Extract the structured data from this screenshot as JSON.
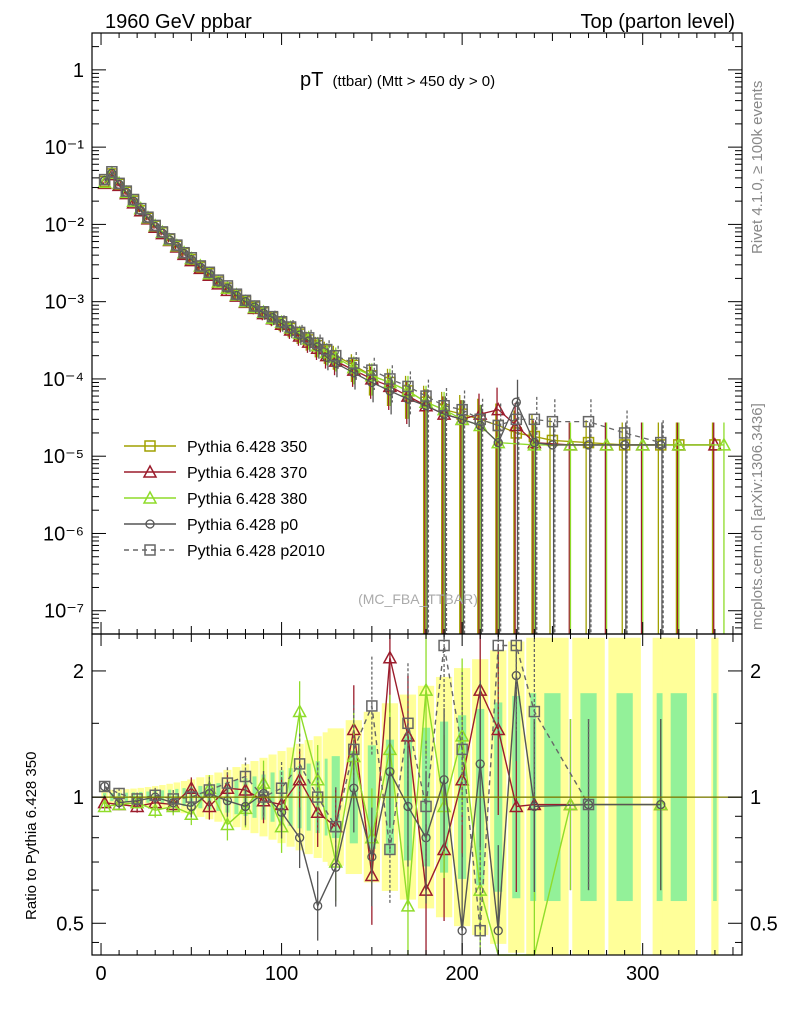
{
  "header": {
    "left": "1960 GeV ppbar",
    "right": "Top (parton level)"
  },
  "side_labels": {
    "rivet": "Rivet 4.1.0, ≥ 100k events",
    "mcplots": "mcplots.cern.ch [arXiv:1306.3436]"
  },
  "colors": {
    "p350": "#a0a000",
    "p370": "#9b1c2c",
    "p380": "#8fdc2a",
    "p0": "#555555",
    "p2010": "#666666",
    "band_yellow": "#ffff99",
    "band_green": "#80ee99"
  },
  "chart_data": [
    {
      "type": "line",
      "panel": "main",
      "title": "pT",
      "title_sub": "(ttbar) (Mtt > 450 dy > 0)",
      "watermark": "(MC_FBA_TTBAR)",
      "xlabel": "",
      "ylabel": "",
      "xlim": [
        -5,
        355
      ],
      "ylog": true,
      "ylim": [
        5e-08,
        3
      ],
      "x_ticks": [
        0,
        100,
        200,
        300
      ],
      "y_ticks": [
        {
          "value": 1,
          "label": "1"
        },
        {
          "value": 0.1,
          "label": "10⁻¹"
        },
        {
          "value": 0.01,
          "label": "10⁻²"
        },
        {
          "value": 0.001,
          "label": "10⁻³"
        },
        {
          "value": 0.0001,
          "label": "10⁻⁴"
        },
        {
          "value": 1e-05,
          "label": "10⁻⁵"
        },
        {
          "value": 1e-06,
          "label": "10⁻⁶"
        },
        {
          "value": 1e-07,
          "label": "10⁻⁷"
        }
      ],
      "legend_position": "lower-left",
      "series": [
        {
          "key": "p350",
          "name": "Pythia 6.428 350",
          "marker": "square-open",
          "dash": false,
          "x": [
            2,
            6,
            10,
            14,
            18,
            22,
            26,
            30,
            34,
            38,
            42,
            46,
            50,
            55,
            60,
            65,
            70,
            75,
            80,
            85,
            90,
            95,
            100,
            105,
            110,
            115,
            120,
            125,
            130,
            140,
            150,
            160,
            170,
            180,
            190,
            200,
            210,
            220,
            230,
            240,
            250,
            270,
            290,
            310,
            320,
            340
          ],
          "y": [
            0.036,
            0.045,
            0.033,
            0.026,
            0.02,
            0.015,
            0.012,
            0.0095,
            0.0078,
            0.0064,
            0.0052,
            0.0042,
            0.0035,
            0.0028,
            0.0023,
            0.0018,
            0.0015,
            0.0012,
            0.001,
            0.00085,
            0.00072,
            0.00062,
            0.00053,
            0.00045,
            0.00038,
            0.00032,
            0.00027,
            0.00023,
            0.0002,
            0.00015,
            0.00011,
            9e-05,
            7e-05,
            5e-05,
            4e-05,
            3.5e-05,
            3e-05,
            2.5e-05,
            2e-05,
            1.8e-05,
            1.6e-05,
            1.5e-05,
            1.4e-05,
            1.4e-05,
            1.4e-05,
            1.4e-05
          ]
        },
        {
          "key": "p370",
          "name": "Pythia 6.428 370",
          "marker": "triangle-open",
          "dash": false,
          "x": [
            2,
            6,
            10,
            14,
            18,
            22,
            26,
            30,
            34,
            38,
            42,
            46,
            50,
            55,
            60,
            65,
            70,
            75,
            80,
            85,
            90,
            95,
            100,
            105,
            110,
            115,
            120,
            125,
            130,
            140,
            150,
            160,
            170,
            180,
            190,
            200,
            210,
            220,
            230,
            240,
            260,
            280,
            300,
            320,
            340
          ],
          "y": [
            0.034,
            0.044,
            0.032,
            0.025,
            0.019,
            0.015,
            0.0118,
            0.0092,
            0.0076,
            0.0062,
            0.0051,
            0.0041,
            0.0034,
            0.0027,
            0.0022,
            0.0017,
            0.0014,
            0.00118,
            0.00098,
            0.00082,
            0.0007,
            0.0006,
            0.00051,
            0.00043,
            0.00036,
            0.0003,
            0.00025,
            0.0002,
            0.00017,
            0.00013,
            0.0001,
            8e-05,
            6e-05,
            4.5e-05,
            3.5e-05,
            3e-05,
            3.5e-05,
            4e-05,
            2.5e-05,
            1.5e-05,
            1.4e-05,
            1.4e-05,
            1.4e-05,
            1.4e-05,
            1.4e-05
          ]
        },
        {
          "key": "p380",
          "name": "Pythia 6.428 380",
          "marker": "triangle-open",
          "dash": false,
          "x": [
            2,
            6,
            10,
            14,
            18,
            22,
            26,
            30,
            34,
            38,
            42,
            46,
            50,
            55,
            60,
            65,
            70,
            75,
            80,
            85,
            90,
            95,
            100,
            105,
            110,
            115,
            120,
            125,
            130,
            140,
            150,
            160,
            170,
            180,
            190,
            200,
            210,
            220,
            240,
            260,
            280,
            300,
            320,
            345
          ],
          "y": [
            0.035,
            0.046,
            0.034,
            0.026,
            0.02,
            0.016,
            0.0122,
            0.0096,
            0.0079,
            0.0063,
            0.0053,
            0.0043,
            0.0036,
            0.0029,
            0.0023,
            0.0018,
            0.0015,
            0.00122,
            0.001,
            0.00084,
            0.00073,
            0.00061,
            0.00054,
            0.00046,
            0.00039,
            0.00033,
            0.00027,
            0.00022,
            0.00019,
            0.00014,
            0.00011,
            9e-05,
            7e-05,
            5e-05,
            4e-05,
            3e-05,
            2.5e-05,
            1.5e-05,
            1.4e-05,
            1.4e-05,
            1.4e-05,
            1.4e-05,
            1.4e-05,
            1.4e-05
          ]
        },
        {
          "key": "p0",
          "name": "Pythia 6.428 p0",
          "marker": "circle-open",
          "dash": false,
          "x": [
            2,
            6,
            10,
            14,
            18,
            22,
            26,
            30,
            34,
            38,
            42,
            46,
            50,
            55,
            60,
            65,
            70,
            75,
            80,
            85,
            90,
            95,
            100,
            105,
            110,
            115,
            120,
            125,
            130,
            140,
            150,
            160,
            170,
            180,
            190,
            200,
            210,
            220,
            230,
            240,
            250,
            270,
            290,
            310
          ],
          "y": [
            0.037,
            0.046,
            0.033,
            0.026,
            0.02,
            0.015,
            0.0121,
            0.0094,
            0.0077,
            0.0063,
            0.0052,
            0.0042,
            0.0035,
            0.0028,
            0.0023,
            0.0018,
            0.0015,
            0.0012,
            0.001,
            0.00085,
            0.00071,
            0.00062,
            0.00052,
            0.00044,
            0.00037,
            0.00031,
            0.00026,
            0.00019,
            0.00016,
            0.00012,
            9e-05,
            7e-05,
            5.5e-05,
            4.5e-05,
            3.5e-05,
            3e-05,
            2.5e-05,
            1.5e-05,
            5e-05,
            1.5e-05,
            1.4e-05,
            1.4e-05,
            1.4e-05,
            1.4e-05
          ]
        },
        {
          "key": "p2010",
          "name": "Pythia 6.428 p2010",
          "marker": "square-open",
          "dash": true,
          "x": [
            2,
            6,
            10,
            14,
            18,
            22,
            26,
            30,
            34,
            38,
            42,
            46,
            50,
            55,
            60,
            65,
            70,
            75,
            80,
            85,
            90,
            95,
            100,
            105,
            110,
            115,
            120,
            125,
            130,
            140,
            150,
            160,
            170,
            180,
            190,
            200,
            210,
            220,
            230,
            240,
            250,
            270,
            290,
            310
          ],
          "y": [
            0.038,
            0.048,
            0.034,
            0.027,
            0.021,
            0.016,
            0.0124,
            0.0097,
            0.008,
            0.0065,
            0.0054,
            0.0043,
            0.0037,
            0.0029,
            0.0024,
            0.0019,
            0.0016,
            0.00125,
            0.00104,
            0.00088,
            0.00074,
            0.00064,
            0.00055,
            0.00047,
            0.0004,
            0.00034,
            0.00029,
            0.00024,
            0.0002,
            0.00016,
            0.00013,
            0.0001,
            8e-05,
            6e-05,
            4.5e-05,
            4e-05,
            3e-05,
            2.5e-05,
            3e-05,
            3e-05,
            2.8e-05,
            2.8e-05,
            2e-05,
            1.5e-05
          ]
        }
      ]
    },
    {
      "type": "line",
      "panel": "ratio",
      "xlabel": "",
      "ylabel": "Ratio to Pythia 6.428 350",
      "xlim": [
        -5,
        355
      ],
      "ylog": true,
      "ylim": [
        0.42,
        2.45
      ],
      "x_ticks": [
        0,
        100,
        200,
        300
      ],
      "y_ticks": [
        {
          "value": 0.5,
          "label": "0.5"
        },
        {
          "value": 1,
          "label": "1"
        },
        {
          "value": 2,
          "label": "2"
        }
      ],
      "reference": 1,
      "series": [
        {
          "key": "p370",
          "x": [
            2,
            10,
            20,
            30,
            40,
            50,
            60,
            70,
            80,
            90,
            100,
            110,
            120,
            130,
            140,
            150,
            160,
            170,
            180,
            190,
            200,
            210,
            220,
            230,
            240,
            260,
            310
          ],
          "y": [
            0.97,
            0.96,
            0.95,
            0.97,
            0.96,
            1.05,
            0.95,
            1.05,
            1.04,
            0.98,
            0.96,
            1.1,
            0.92,
            0.85,
            1.45,
            0.65,
            2.15,
            1.4,
            0.6,
            0.75,
            1.1,
            1.8,
            1.45,
            0.95,
            0.96,
            0.96,
            0.96
          ]
        },
        {
          "key": "p380",
          "x": [
            2,
            10,
            20,
            30,
            40,
            50,
            60,
            70,
            80,
            90,
            100,
            110,
            120,
            130,
            140,
            150,
            160,
            170,
            180,
            190,
            200,
            210,
            220,
            240,
            260,
            310
          ],
          "y": [
            0.95,
            0.96,
            0.97,
            0.93,
            0.95,
            0.91,
            1.05,
            0.86,
            0.94,
            1.08,
            0.85,
            1.6,
            1.1,
            0.7,
            1.25,
            0.8,
            1.3,
            0.55,
            1.8,
            0.95,
            1.4,
            0.6,
            0.42,
            0.42,
            0.96,
            0.96
          ]
        },
        {
          "key": "p0",
          "x": [
            2,
            10,
            20,
            30,
            40,
            50,
            60,
            70,
            80,
            90,
            100,
            110,
            120,
            130,
            140,
            150,
            160,
            170,
            180,
            190,
            200,
            210,
            220,
            230,
            240,
            270,
            310
          ],
          "y": [
            1.06,
            0.97,
            0.98,
            1.0,
            0.97,
            0.95,
            1.02,
            0.98,
            0.95,
            1.02,
            0.92,
            0.8,
            0.55,
            0.68,
            1.05,
            0.72,
            1.15,
            0.95,
            0.8,
            1.1,
            0.48,
            1.2,
            0.48,
            1.95,
            0.95,
            0.96,
            0.96
          ]
        },
        {
          "key": "p2010",
          "x": [
            2,
            10,
            20,
            30,
            40,
            50,
            60,
            70,
            80,
            90,
            100,
            110,
            120,
            130,
            140,
            150,
            160,
            170,
            180,
            190,
            200,
            210,
            220,
            230,
            240,
            270
          ],
          "y": [
            1.06,
            1.02,
            0.99,
            1.01,
            0.99,
            1.0,
            1.04,
            1.08,
            1.12,
            1.0,
            1.05,
            1.2,
            1.0,
            0.85,
            1.3,
            1.65,
            0.75,
            1.5,
            0.95,
            2.3,
            1.3,
            0.48,
            2.3,
            2.3,
            1.6,
            0.96
          ]
        }
      ]
    }
  ]
}
